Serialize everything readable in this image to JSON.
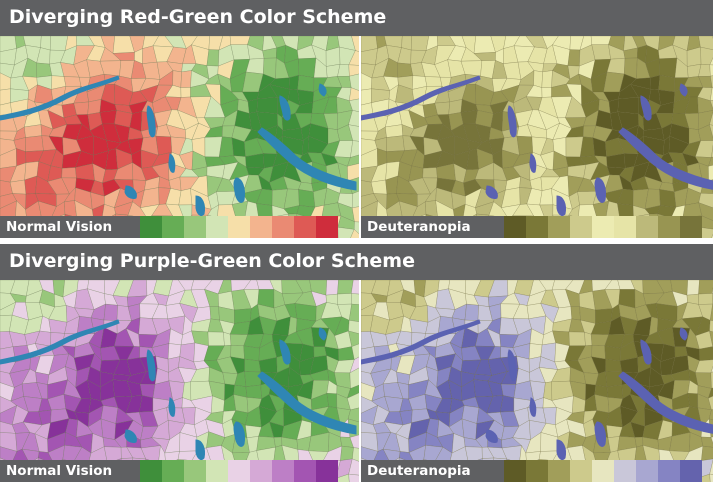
{
  "figures": [
    {
      "title": "Diverging Red-Green Color Scheme",
      "panels": [
        {
          "label": "Normal Vision",
          "colors": [
            "#3f8f3b",
            "#66ad55",
            "#98c77b",
            "#d2e5b5",
            "#f6dfa9",
            "#f3b48e",
            "#ea8a73",
            "#de5a55",
            "#cf2d3c"
          ],
          "water": "#2f86b4",
          "edge": "#5b6b45"
        },
        {
          "label": "Deuteranopia",
          "colors": [
            "#5e5b26",
            "#7a7837",
            "#a19e5a",
            "#cdca8c",
            "#ecebb2",
            "#e6e4a7",
            "#bcb97a",
            "#989552",
            "#77743a"
          ],
          "water": "#5b62b2",
          "edge": "#6a6535"
        }
      ]
    },
    {
      "title": "Diverging Purple-Green Color Scheme",
      "panels": [
        {
          "label": "Normal Vision",
          "colors": [
            "#3f8f3b",
            "#66ad55",
            "#98c77b",
            "#d2e5b5",
            "#e9d2e6",
            "#d5a9d6",
            "#bd7fc6",
            "#a355b2",
            "#87329a"
          ],
          "water": "#2f86b4",
          "edge": "#5b6b45"
        },
        {
          "label": "Deuteranopia",
          "colors": [
            "#5e5b26",
            "#7a7837",
            "#a19e5a",
            "#cdca8c",
            "#e7e6c0",
            "#c9c7d9",
            "#a8a7d1",
            "#8584c3",
            "#6463ad"
          ],
          "water": "#5b62b2",
          "edge": "#6a6535"
        }
      ]
    }
  ]
}
